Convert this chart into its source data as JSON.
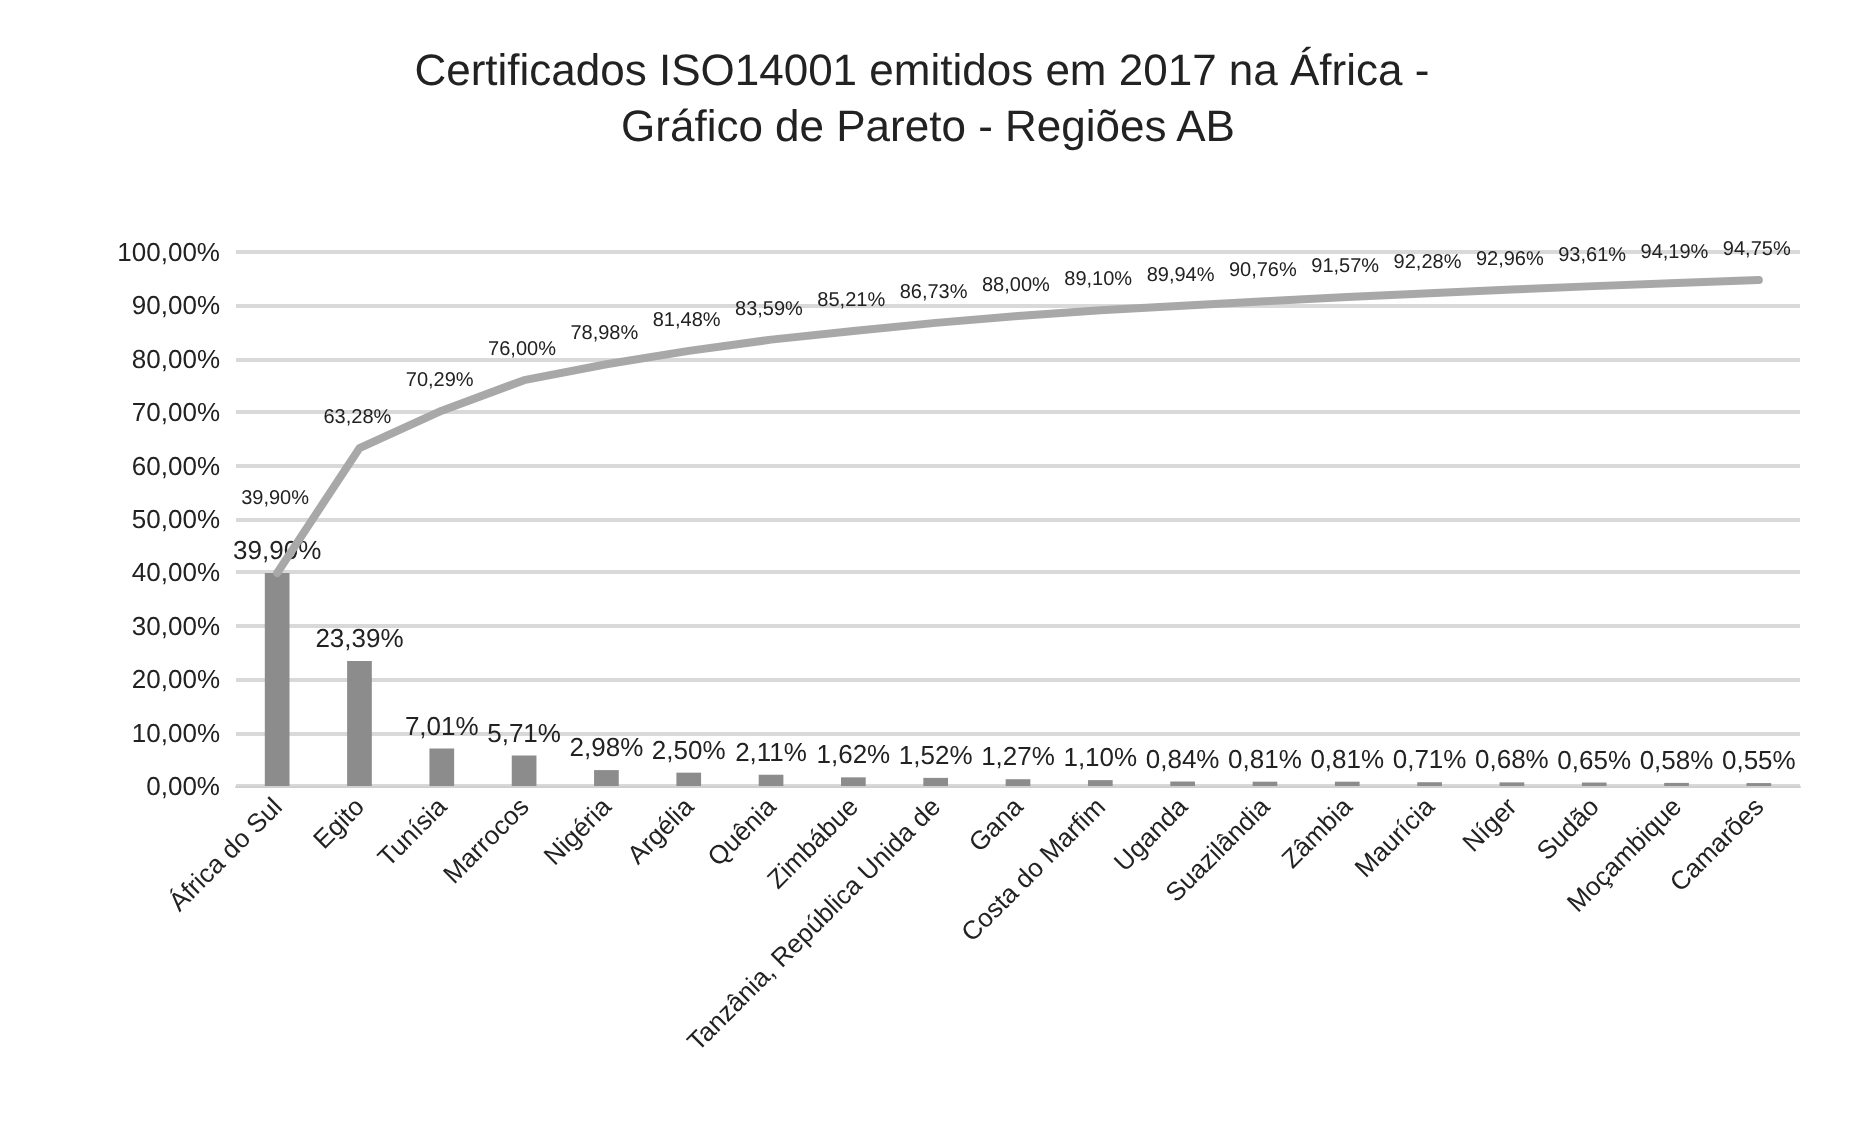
{
  "chart_data": {
    "type": "bar",
    "title": "Certificados ISO14001 emitidos em 2017 na África - Gráfico de Pareto - Regiões AB",
    "categories": [
      "África do Sul",
      "Egito",
      "Tunísia",
      "Marrocos",
      "Nigéria",
      "Argélia",
      "Quênia",
      "Zimbábue",
      "Tanzânia, República Unida de",
      "Gana",
      "Costa do Marfim",
      "Uganda",
      "Suazilândia",
      "Zâmbia",
      "Maurícia",
      "Níger",
      "Sudão",
      "Moçambique",
      "Camarões"
    ],
    "series": [
      {
        "color": "#8c8c8c",
        "values": [
          39.9,
          23.39,
          7.01,
          5.71,
          2.98,
          2.5,
          2.11,
          1.62,
          1.52,
          1.27,
          1.1,
          0.84,
          0.81,
          0.81,
          0.71,
          0.68,
          0.65,
          0.58,
          0.55
        ],
        "value_labels": [
          "39,90%",
          "23,39%",
          "7,01%",
          "5,71%",
          "2,98%",
          "2,50%",
          "2,11%",
          "1,62%",
          "1,52%",
          "1,27%",
          "1,10%",
          "0,84%",
          "0,81%",
          "0,81%",
          "0,71%",
          "0,68%",
          "0,65%",
          "0,58%",
          "0,55%"
        ]
      },
      {
        "type": "line",
        "color": "#a8a8a8",
        "values": [
          39.9,
          63.28,
          70.29,
          76.0,
          78.98,
          81.48,
          83.59,
          85.21,
          86.73,
          88.0,
          89.1,
          89.94,
          90.76,
          91.57,
          92.28,
          92.96,
          93.61,
          94.19,
          94.75
        ],
        "value_labels": [
          "39,90%",
          "63,28%",
          "70,29%",
          "76,00%",
          "78,98%",
          "81,48%",
          "83,59%",
          "85,21%",
          "86,73%",
          "88,00%",
          "89,10%",
          "89,94%",
          "90,76%",
          "91,57%",
          "92,28%",
          "92,96%",
          "93,61%",
          "94,19%",
          "94,75%"
        ]
      }
    ],
    "ylim": [
      0,
      100
    ],
    "yticks": [
      {
        "value": 0,
        "label": "0,00%"
      },
      {
        "value": 10,
        "label": "10,00%"
      },
      {
        "value": 20,
        "label": "20,00%"
      },
      {
        "value": 30,
        "label": "30,00%"
      },
      {
        "value": 40,
        "label": "40,00%"
      },
      {
        "value": 50,
        "label": "50,00%"
      },
      {
        "value": 60,
        "label": "60,00%"
      },
      {
        "value": 70,
        "label": "70,00%"
      },
      {
        "value": 80,
        "label": "80,00%"
      },
      {
        "value": 90,
        "label": "90,00%"
      },
      {
        "value": 100,
        "label": "100,00%"
      }
    ],
    "grid": "y",
    "marker": "none",
    "line_style": "solid"
  }
}
